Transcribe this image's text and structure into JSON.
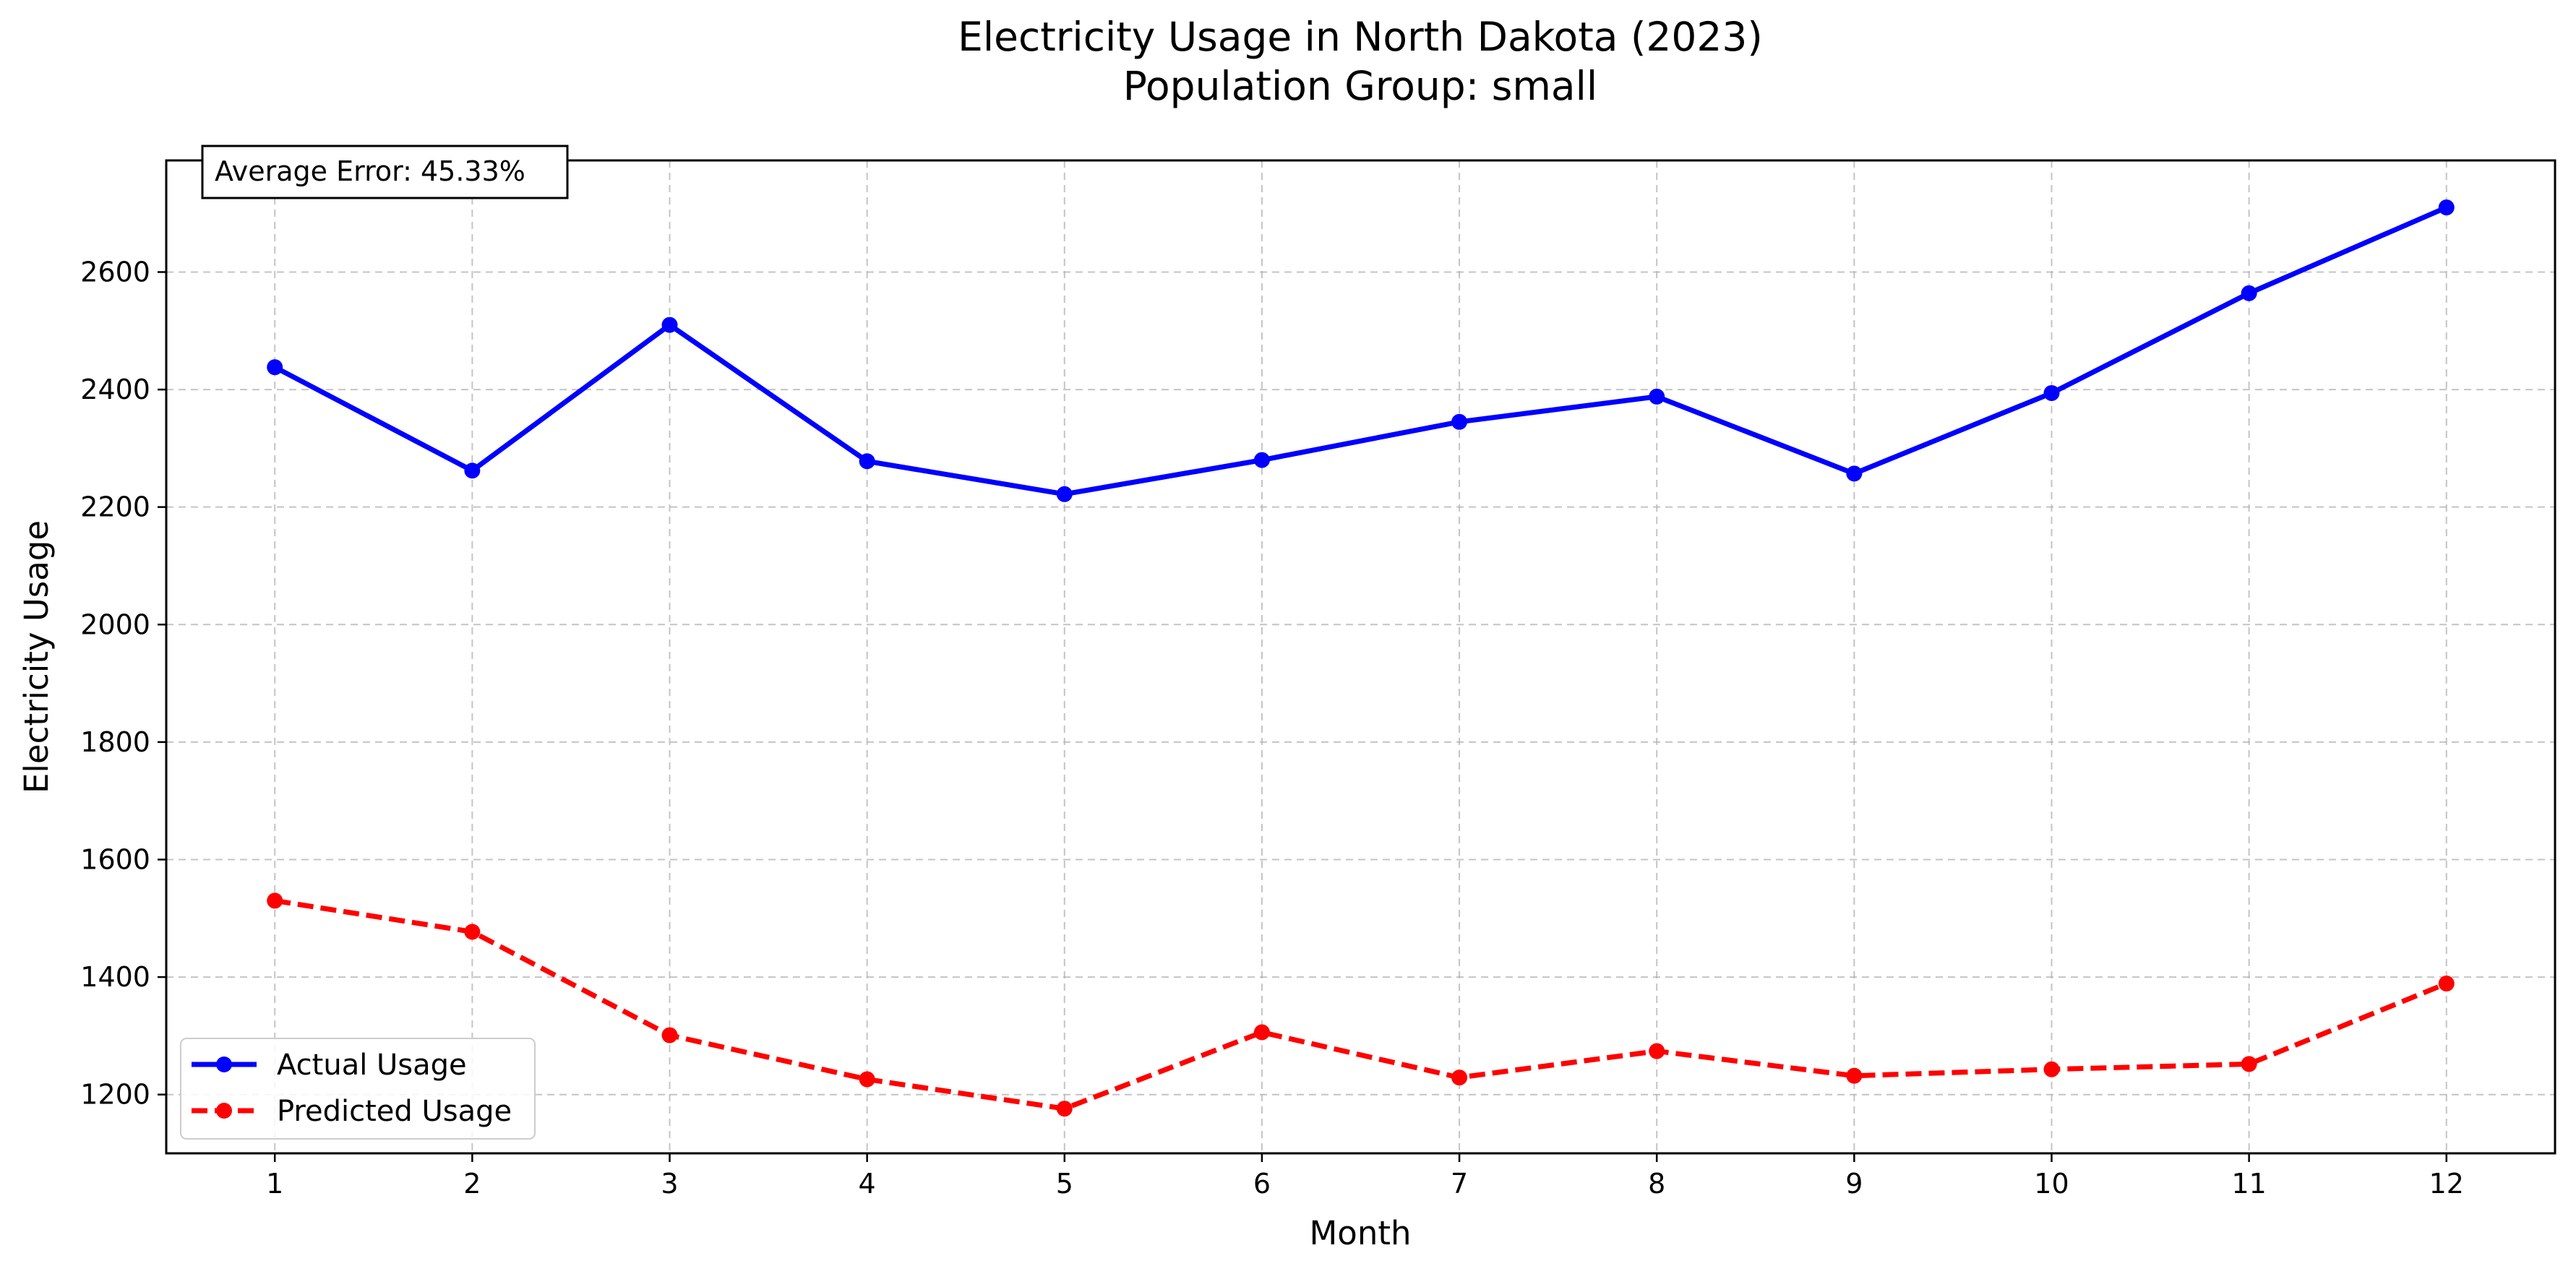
{
  "chart_data": {
    "type": "line",
    "title": "Electricity Usage in North Dakota (2023)",
    "subtitle": "Population Group: small",
    "xlabel": "Month",
    "ylabel": "Electricity Usage",
    "x": [
      1,
      2,
      3,
      4,
      5,
      6,
      7,
      8,
      9,
      10,
      11,
      12
    ],
    "x_ticks": [
      "1",
      "2",
      "3",
      "4",
      "5",
      "6",
      "7",
      "8",
      "9",
      "10",
      "11",
      "12"
    ],
    "y_ticks": [
      "1200",
      "1400",
      "1600",
      "1800",
      "2000",
      "2200",
      "2400",
      "2600"
    ],
    "xlim": [
      0.45,
      12.55
    ],
    "ylim": [
      1100,
      2790
    ],
    "grid": true,
    "legend_position": "lower-left",
    "annotation": "Average Error: 45.33%",
    "series": [
      {
        "name": "Actual Usage",
        "color": "#0000ff",
        "style": "solid",
        "values": [
          2438,
          2262,
          2510,
          2278,
          2222,
          2280,
          2345,
          2388,
          2257,
          2394,
          2564,
          2710
        ]
      },
      {
        "name": "Predicted Usage",
        "color": "#ff0000",
        "style": "dashed",
        "values": [
          1530,
          1477,
          1301,
          1226,
          1176,
          1306,
          1229,
          1274,
          1232,
          1243,
          1252,
          1389
        ]
      }
    ]
  }
}
